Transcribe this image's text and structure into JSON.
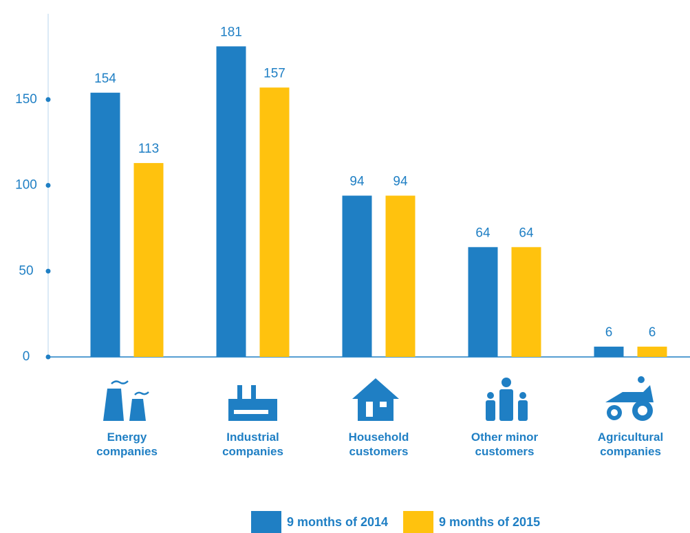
{
  "chart_data": {
    "type": "bar",
    "categories": [
      "Energy companies",
      "Industrial companies",
      "Household customers",
      "Other minor customers",
      "Agricultural companies"
    ],
    "series": [
      {
        "name": "9 months of 2014",
        "color": "#1f7fc4",
        "values": [
          154,
          181,
          94,
          64,
          6
        ]
      },
      {
        "name": "9 months of 2015",
        "color": "#ffc20e",
        "values": [
          113,
          157,
          94,
          64,
          6
        ]
      }
    ],
    "ylim": [
      0,
      200
    ],
    "yticks": [
      0,
      50,
      100,
      150
    ],
    "legend": "bottom"
  }
}
